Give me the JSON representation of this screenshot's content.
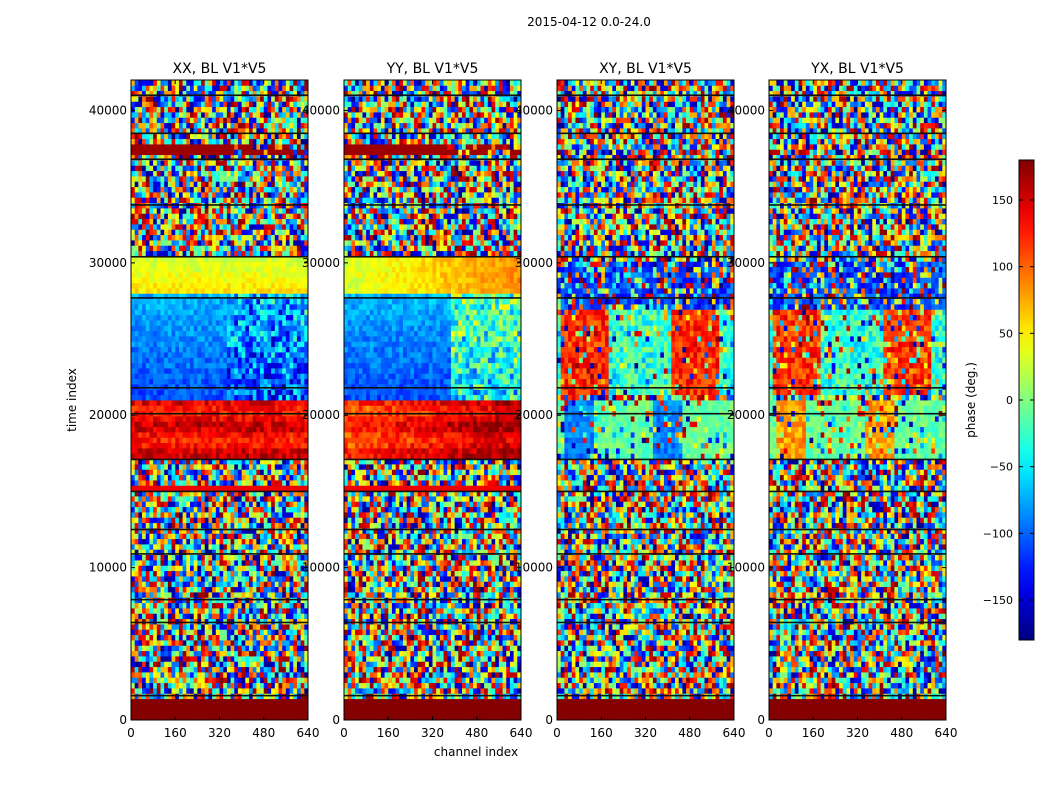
{
  "figure": {
    "suptitle": "2015-04-12 0.0-24.0",
    "xlabel": "channel index",
    "ylabel": "time index"
  },
  "chart_data": {
    "type": "heatmap",
    "panels": [
      {
        "title": "XX, BL V1*V5",
        "pattern": "parallel_a"
      },
      {
        "title": "YY, BL V1*V5",
        "pattern": "parallel_b"
      },
      {
        "title": "XY, BL V1*V5",
        "pattern": "cross_a"
      },
      {
        "title": "YX, BL V1*V5",
        "pattern": "cross_b"
      }
    ],
    "x_ticks": [
      0,
      160,
      320,
      480,
      640
    ],
    "y_ticks": [
      0,
      10000,
      20000,
      30000,
      40000
    ],
    "xlim": [
      0,
      640
    ],
    "ylim": [
      0,
      42000
    ],
    "colormap": "jet",
    "colorbar": {
      "label": "phase (deg.)",
      "range": [
        -180,
        180
      ],
      "ticks": [
        -150,
        -100,
        -50,
        0,
        50,
        100,
        150
      ],
      "tick_labels": [
        "−150",
        "−100",
        "−50",
        "0",
        "50",
        "100",
        "150"
      ]
    },
    "bands": [
      {
        "y": [
          0,
          1500
        ],
        "phase": 180,
        "note": "saturated band at bottom"
      },
      {
        "y": [
          17000,
          21000
        ],
        "phase_XX_YY": 150
      },
      {
        "y": [
          21000,
          28000
        ],
        "phase_XX_YY": -100
      },
      {
        "y": [
          28000,
          30000
        ],
        "phase_XX_YY": 55
      },
      {
        "y": [
          37200,
          37800
        ],
        "phase_XX_YY": 170
      }
    ]
  }
}
